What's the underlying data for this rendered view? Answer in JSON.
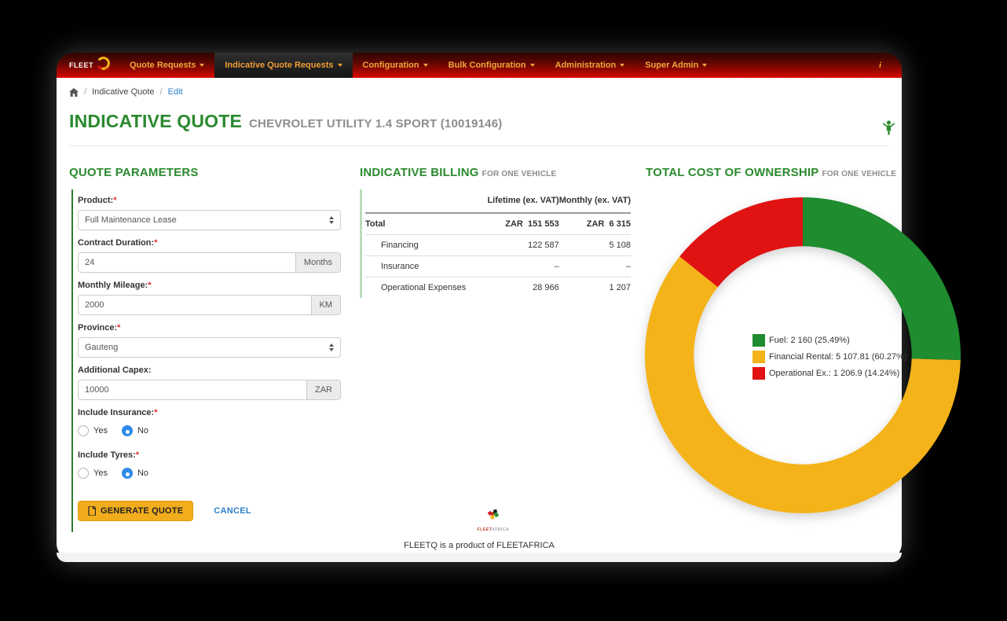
{
  "navbar": {
    "brand": "FLEET",
    "info_icon": "i",
    "items": [
      {
        "label": "Quote Requests",
        "active": false
      },
      {
        "label": "Indicative Quote Requests",
        "active": true
      },
      {
        "label": "Configuration",
        "active": false
      },
      {
        "label": "Bulk Configuration",
        "active": false
      },
      {
        "label": "Administration",
        "active": false
      },
      {
        "label": "Super Admin",
        "active": false
      }
    ]
  },
  "breadcrumb": {
    "separator": "/",
    "item1": "Indicative Quote",
    "item2": "Edit"
  },
  "page": {
    "title": "INDICATIVE QUOTE",
    "subtitle": "CHEVROLET UTILITY 1.4 SPORT (10019146)"
  },
  "required_marker": "*",
  "quote_parameters": {
    "heading": "QUOTE PARAMETERS",
    "product": {
      "label": "Product:",
      "value": "Full Maintenance Lease"
    },
    "contract_duration": {
      "label": "Contract Duration:",
      "value": "24",
      "addon": "Months"
    },
    "monthly_mileage": {
      "label": "Monthly Mileage:",
      "value": "2000",
      "addon": "KM"
    },
    "province": {
      "label": "Province:",
      "value": "Gauteng"
    },
    "additional_capex": {
      "label": "Additional Capex:",
      "value": "10000",
      "addon": "ZAR"
    },
    "include_insurance": {
      "label": "Include Insurance:",
      "yes": "Yes",
      "no": "No",
      "selected": "No"
    },
    "include_tyres": {
      "label": "Include Tyres:",
      "yes": "Yes",
      "no": "No",
      "selected": "No"
    },
    "generate_button": "GENERATE QUOTE",
    "cancel_link": "CANCEL"
  },
  "indicative_billing": {
    "heading": "INDICATIVE BILLING",
    "subheading": "FOR ONE VEHICLE",
    "col_lifetime": "Lifetime (ex. VAT)",
    "col_monthly": "Monthly (ex. VAT)",
    "rows": [
      {
        "label": "Total",
        "lifetime": "ZAR  151 553",
        "monthly": "ZAR  6 315"
      },
      {
        "label": "Financing",
        "lifetime": "122 587",
        "monthly": "5 108"
      },
      {
        "label": "Insurance",
        "lifetime": "–",
        "monthly": "–"
      },
      {
        "label": "Operational Expenses",
        "lifetime": "28 966",
        "monthly": "1 207"
      }
    ]
  },
  "tco": {
    "heading": "TOTAL COST OF OWNERSHIP",
    "subheading": "FOR ONE VEHICLE"
  },
  "chart_data": {
    "type": "pie",
    "donut": true,
    "title": "TOTAL COST OF OWNERSHIP FOR ONE VEHICLE",
    "inner_radius_ratio": 0.69,
    "start_angle_deg": 0,
    "direction": "clockwise",
    "legend_position": "center",
    "series": [
      {
        "name": "Fuel",
        "value": 2160,
        "pct": 25.49,
        "color": "#1e8c2f",
        "label": "Fuel: 2 160 (25.49%)"
      },
      {
        "name": "Financial Rental",
        "value": 5107.81,
        "pct": 60.27,
        "color": "#f5b31a",
        "label": "Financial Rental: 5 107.81 (60.27%)"
      },
      {
        "name": "Operational Ex.",
        "value": 1206.9,
        "pct": 14.24,
        "color": "#e01212",
        "label": "Operational Ex.: 1 206.9 (14.24%)"
      }
    ]
  },
  "footer": {
    "brand_fleet": "FLEET",
    "brand_africa": "AFRICA",
    "tagline": "FLEETQ is a product of FLEETAFRICA"
  }
}
